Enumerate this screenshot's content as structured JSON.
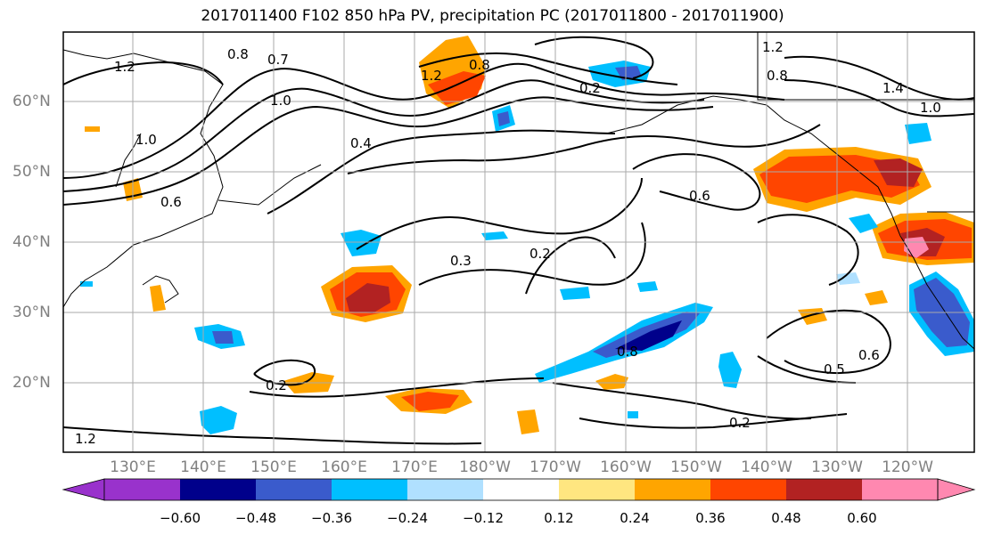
{
  "title": "2017011400 F102 850 hPa PV, precipitation PC (2017011800 - 2017011900)",
  "lat_labels": [
    "60°N",
    "50°N",
    "40°N",
    "30°N",
    "20°N"
  ],
  "lon_labels": [
    "130°E",
    "140°E",
    "150°E",
    "160°E",
    "170°E",
    "180°W",
    "170°W",
    "160°W",
    "150°W",
    "140°W",
    "130°W",
    "120°W"
  ],
  "contour_labels": [
    "1.2",
    "0.8",
    "0.7",
    "1.0",
    "1.2",
    "0.8",
    "1.0",
    "0.6",
    "0.4",
    "0.2",
    "1.2",
    "0.8",
    "1.4",
    "1.0",
    "0.6",
    "0.3",
    "0.2",
    "0.2",
    "0.8",
    "0.5",
    "0.6",
    "0.2",
    "1.2"
  ],
  "colorbar": {
    "ticks": [
      "−0.60",
      "−0.48",
      "−0.36",
      "−0.24",
      "−0.12",
      "0.12",
      "0.24",
      "0.36",
      "0.48",
      "0.60"
    ],
    "colors": [
      "#9932cc",
      "#00008b",
      "#3a5bcc",
      "#00bfff",
      "#b0e0ff",
      "#ffffff",
      "#ffe680",
      "#ffa500",
      "#ff4500",
      "#b22222",
      "#ff88b0"
    ]
  }
}
